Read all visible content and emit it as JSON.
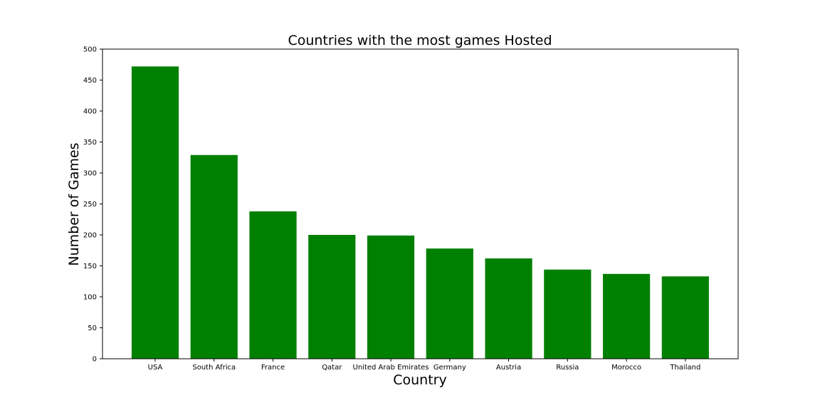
{
  "chart_data": {
    "type": "bar",
    "title": "Countries with the most games Hosted",
    "x_label": "Country",
    "y_label": "Number of Games",
    "categories": [
      "USA",
      "South Africa",
      "France",
      "Qatar",
      "United Arab Emirates",
      "Germany",
      "Austria",
      "Russia",
      "Morocco",
      "Thailand"
    ],
    "values": [
      472,
      329,
      238,
      200,
      199,
      178,
      162,
      144,
      137,
      133
    ],
    "color": "#008000",
    "ylim": [
      0,
      500
    ],
    "yticks": [
      0,
      50,
      100,
      150,
      200,
      250,
      300,
      350,
      400,
      450,
      500
    ],
    "grid": false
  }
}
